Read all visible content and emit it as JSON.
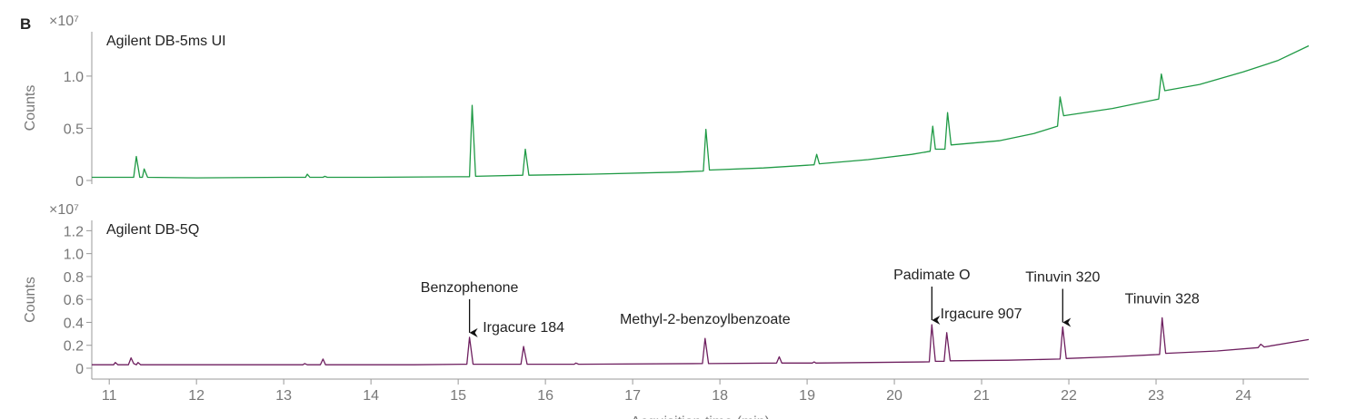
{
  "panel_label": "B",
  "chart_data": [
    {
      "type": "line",
      "ylabel": "Counts",
      "y_scale_label": "×10⁷",
      "xlim": [
        10.8,
        24.75
      ],
      "ylim": [
        -0.035,
        1.425
      ],
      "yticks": [
        0,
        0.5,
        {
          "value": 1.0,
          "label": "1.0"
        }
      ],
      "x": [
        10.8,
        11.28,
        11.31,
        11.35,
        11.38,
        11.4,
        11.44,
        12,
        13,
        13.25,
        13.27,
        13.3,
        13.45,
        13.47,
        13.5,
        14,
        15,
        15.13,
        15.16,
        15.2,
        15.74,
        15.77,
        15.81,
        16.5,
        17.5,
        17.81,
        17.84,
        17.88,
        18.5,
        19.08,
        19.11,
        19.14,
        19.7,
        20.2,
        20.41,
        20.44,
        20.47,
        20.58,
        20.61,
        20.65,
        21.2,
        21.6,
        21.87,
        21.9,
        21.94,
        22.5,
        23.03,
        23.06,
        23.1,
        23.5,
        24,
        24.4,
        24.75
      ],
      "series": [
        {
          "name": "Agilent DB-5ms UI",
          "color": "#1f9a45",
          "values": [
            0.03,
            0.03,
            0.23,
            0.03,
            0.03,
            0.11,
            0.03,
            0.025,
            0.03,
            0.03,
            0.06,
            0.03,
            0.03,
            0.04,
            0.03,
            0.03,
            0.035,
            0.035,
            0.72,
            0.04,
            0.05,
            0.3,
            0.05,
            0.06,
            0.08,
            0.09,
            0.49,
            0.1,
            0.12,
            0.15,
            0.25,
            0.16,
            0.2,
            0.25,
            0.28,
            0.52,
            0.3,
            0.3,
            0.65,
            0.34,
            0.38,
            0.45,
            0.52,
            0.8,
            0.62,
            0.69,
            0.78,
            1.02,
            0.86,
            0.92,
            1.04,
            1.15,
            1.29
          ]
        }
      ]
    },
    {
      "type": "line",
      "ylabel": "Counts",
      "y_scale_label": "×10⁷",
      "xlabel": "Acquisition time (min)",
      "xlim": [
        10.8,
        24.75
      ],
      "ylim": [
        -0.095,
        1.29
      ],
      "xticks": [
        11,
        12,
        13,
        14,
        15,
        16,
        17,
        18,
        19,
        20,
        21,
        22,
        23,
        24
      ],
      "yticks": [
        0,
        0.2,
        0.4,
        0.6,
        0.8,
        {
          "value": 1.0,
          "label": "1.0"
        },
        1.2
      ],
      "x": [
        10.8,
        11.05,
        11.07,
        11.1,
        11.22,
        11.25,
        11.28,
        11.31,
        11.33,
        11.36,
        12,
        13.22,
        13.24,
        13.27,
        13.42,
        13.45,
        13.48,
        14.5,
        15.1,
        15.13,
        15.17,
        15.72,
        15.75,
        15.79,
        16.33,
        16.35,
        16.38,
        17.8,
        17.83,
        17.87,
        18.65,
        18.68,
        18.71,
        19.06,
        19.08,
        19.1,
        20.4,
        20.43,
        20.47,
        20.57,
        20.6,
        20.64,
        21.3,
        21.9,
        21.93,
        21.97,
        22.5,
        23.04,
        23.07,
        23.11,
        23.7,
        24.17,
        24.2,
        24.24,
        24.75
      ],
      "series": [
        {
          "name": "Agilent DB-5Q",
          "color": "#6e1f5f",
          "values": [
            0.03,
            0.03,
            0.05,
            0.03,
            0.03,
            0.09,
            0.04,
            0.03,
            0.05,
            0.03,
            0.03,
            0.03,
            0.04,
            0.03,
            0.03,
            0.08,
            0.03,
            0.03,
            0.035,
            0.27,
            0.035,
            0.035,
            0.19,
            0.035,
            0.035,
            0.045,
            0.035,
            0.04,
            0.26,
            0.04,
            0.045,
            0.1,
            0.045,
            0.045,
            0.055,
            0.045,
            0.055,
            0.38,
            0.06,
            0.06,
            0.31,
            0.065,
            0.07,
            0.08,
            0.36,
            0.085,
            0.1,
            0.12,
            0.44,
            0.13,
            0.15,
            0.18,
            0.21,
            0.185,
            0.25
          ]
        }
      ],
      "annotations": [
        {
          "text": "Benzophenone",
          "x": 15.13,
          "arrow": true,
          "align": "middle"
        },
        {
          "text": "Irgacure 184",
          "x": 15.75,
          "arrow": false,
          "align": "middle"
        },
        {
          "text": "Methyl-2-benzoylbenzoate",
          "x": 17.83,
          "arrow": false,
          "align": "middle"
        },
        {
          "text": "Padimate O",
          "x": 20.43,
          "arrow": true,
          "align": "middle"
        },
        {
          "text": "Irgacure 907",
          "x": 20.6,
          "arrow": false,
          "align": "start"
        },
        {
          "text": "Tinuvin 320",
          "x": 21.93,
          "arrow": true,
          "align": "middle"
        },
        {
          "text": "Tinuvin 328",
          "x": 23.07,
          "arrow": false,
          "align": "middle"
        }
      ]
    }
  ]
}
